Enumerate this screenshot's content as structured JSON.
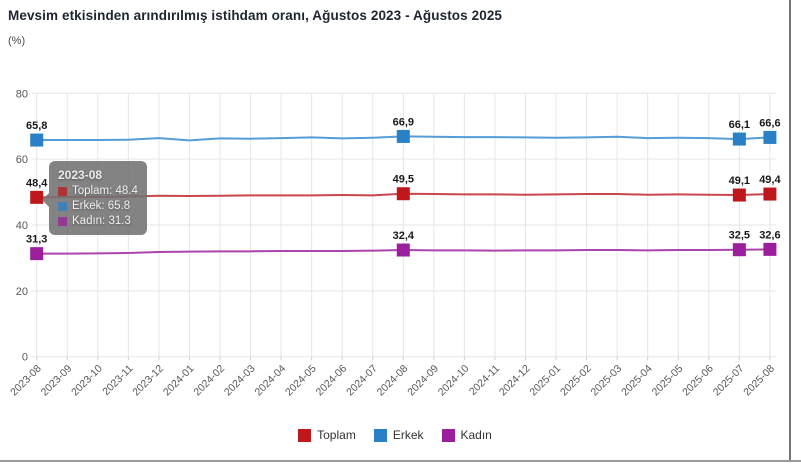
{
  "chart_data": {
    "type": "line",
    "title": "Mevsim etkisinden arındırılmış istihdam oranı, Ağustos 2023 - Ağustos 2025",
    "ylabel": "(%)",
    "xlabel": "",
    "ylim": [
      0,
      80
    ],
    "yticks": [
      0,
      20,
      40,
      60,
      80
    ],
    "grid": true,
    "grid_color": "#e6e6e6",
    "legend_position": "bottom",
    "categories": [
      "2023-08",
      "2023-09",
      "2023-10",
      "2023-11",
      "2023-12",
      "2024-01",
      "2024-02",
      "2024-03",
      "2024-04",
      "2024-05",
      "2024-06",
      "2024-07",
      "2024-08",
      "2024-09",
      "2024-10",
      "2024-11",
      "2024-12",
      "2025-01",
      "2025-02",
      "2025-03",
      "2025-04",
      "2025-05",
      "2025-06",
      "2025-07",
      "2025-08"
    ],
    "labeled_indices": [
      0,
      12,
      23,
      24
    ],
    "series": [
      {
        "name": "Toplam",
        "color": "#be171c",
        "line_color": "#c9474b",
        "values": [
          48.4,
          48.5,
          48.5,
          48.6,
          48.9,
          48.8,
          48.9,
          49.0,
          49.0,
          49.0,
          49.1,
          49.0,
          49.5,
          49.4,
          49.3,
          49.3,
          49.2,
          49.3,
          49.4,
          49.4,
          49.2,
          49.3,
          49.2,
          49.1,
          49.4
        ],
        "point_labels": {
          "0": "48,4",
          "12": "49,5",
          "23": "49,1",
          "24": "49,4"
        }
      },
      {
        "name": "Erkek",
        "color": "#2980c6",
        "line_color": "#559dd6",
        "values": [
          65.8,
          65.8,
          65.8,
          65.9,
          66.4,
          65.7,
          66.3,
          66.2,
          66.4,
          66.6,
          66.3,
          66.5,
          66.9,
          66.8,
          66.7,
          66.7,
          66.6,
          66.5,
          66.6,
          66.8,
          66.4,
          66.5,
          66.4,
          66.1,
          66.6
        ],
        "point_labels": {
          "0": "65,8",
          "12": "66,9",
          "23": "66,1",
          "24": "66,6"
        }
      },
      {
        "name": "Kadın",
        "color": "#9b1f9d",
        "line_color": "#ad44ad",
        "values": [
          31.3,
          31.3,
          31.4,
          31.5,
          31.8,
          31.9,
          32.0,
          32.0,
          32.1,
          32.1,
          32.1,
          32.2,
          32.4,
          32.3,
          32.3,
          32.2,
          32.3,
          32.3,
          32.4,
          32.4,
          32.3,
          32.4,
          32.4,
          32.5,
          32.6
        ],
        "point_labels": {
          "0": "31,3",
          "12": "32,4",
          "23": "32,5",
          "24": "32,6"
        }
      }
    ]
  },
  "tooltip": {
    "header": "2023-08",
    "rows": [
      {
        "text": "Toplam: 48.4",
        "color": "#be171c"
      },
      {
        "text": "Erkek: 65.8",
        "color": "#2980c6"
      },
      {
        "text": "Kadın: 31.3",
        "color": "#9b1f9d"
      }
    ]
  },
  "legend": {
    "items": [
      {
        "label": "Toplam",
        "color": "#be171c"
      },
      {
        "label": "Erkek",
        "color": "#2980c6"
      },
      {
        "label": "Kadın",
        "color": "#9b1f9d"
      }
    ]
  }
}
